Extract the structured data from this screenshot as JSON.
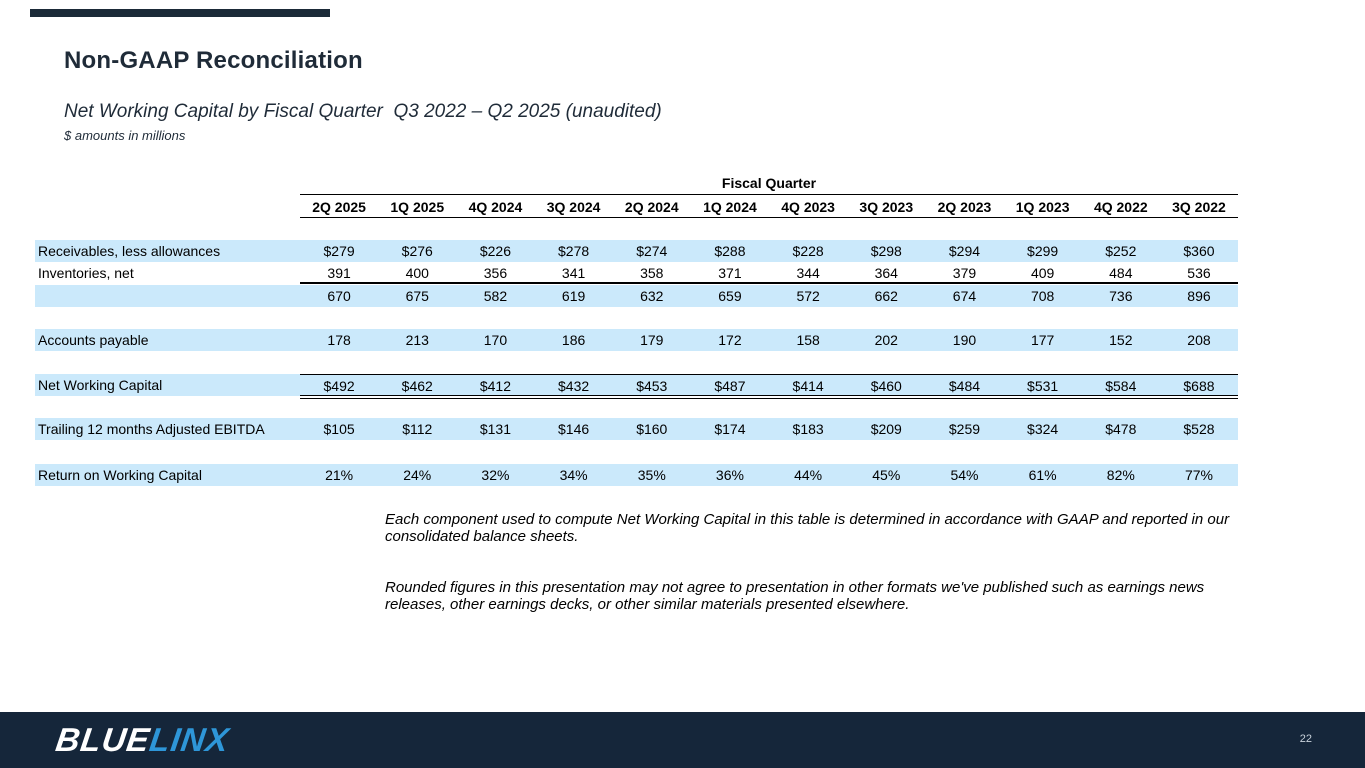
{
  "slide": {
    "title": "Non-GAAP Reconciliation",
    "subtitle": "Net Working Capital by Fiscal Quarter  Q3 2022 – Q2 2025 (unaudited)",
    "units_note": "$ amounts in millions",
    "page_number": "22"
  },
  "logo": {
    "part1": "BLUE",
    "part2": "LINX"
  },
  "colors": {
    "accent_row": "#CBE9FB",
    "footer_bg": "#15263A",
    "logo_blue": "#2E96D8",
    "title_text": "#1F2B38"
  },
  "table": {
    "group_header": "Fiscal Quarter",
    "columns": [
      "2Q 2025",
      "1Q 2025",
      "4Q 2024",
      "3Q 2024",
      "2Q 2024",
      "1Q 2024",
      "4Q 2023",
      "3Q 2023",
      "2Q 2023",
      "1Q 2023",
      "4Q 2022",
      "3Q 2022"
    ],
    "rows": [
      {
        "id": "receivables",
        "label": "Receivables, less allowances",
        "values": [
          "$279",
          "$276",
          "$226",
          "$278",
          "$274",
          "$288",
          "$228",
          "$298",
          "$294",
          "$299",
          "$252",
          "$360"
        ],
        "highlight": true
      },
      {
        "id": "inventories",
        "label": "Inventories, net",
        "values": [
          "391",
          "400",
          "356",
          "341",
          "358",
          "371",
          "344",
          "364",
          "379",
          "409",
          "484",
          "536"
        ],
        "highlight": false,
        "rule_below": true
      },
      {
        "id": "current-assets-subtotal",
        "label": "",
        "values": [
          "670",
          "675",
          "582",
          "619",
          "632",
          "659",
          "572",
          "662",
          "674",
          "708",
          "736",
          "896"
        ],
        "highlight": true
      },
      {
        "id": "accounts-payable",
        "label": "Accounts payable",
        "values": [
          "178",
          "213",
          "170",
          "186",
          "179",
          "172",
          "158",
          "202",
          "190",
          "177",
          "152",
          "208"
        ],
        "highlight": true
      },
      {
        "id": "net-working-capital",
        "label": "Net Working Capital",
        "values": [
          "$492",
          "$462",
          "$412",
          "$432",
          "$453",
          "$487",
          "$414",
          "$460",
          "$484",
          "$531",
          "$584",
          "$688"
        ],
        "highlight": true,
        "rule_above": true,
        "double_rule_below": true
      },
      {
        "id": "trailing-ebitda",
        "label": "Trailing 12 months Adjusted EBITDA",
        "values": [
          "$105",
          "$112",
          "$131",
          "$146",
          "$160",
          "$174",
          "$183",
          "$209",
          "$259",
          "$324",
          "$478",
          "$528"
        ],
        "highlight": true
      },
      {
        "id": "return-on-working-capital",
        "label": "Return on Working Capital",
        "values": [
          "21%",
          "24%",
          "32%",
          "34%",
          "35%",
          "36%",
          "44%",
          "45%",
          "54%",
          "61%",
          "82%",
          "77%"
        ],
        "highlight": true
      }
    ]
  },
  "footnotes": [
    "Each component used to compute Net Working Capital in this table is determined in accordance with GAAP and reported in our consolidated balance sheets.",
    "Rounded figures in this presentation may not agree to presentation in other formats we've published such as earnings news releases, other earnings decks, or other similar materials presented elsewhere."
  ]
}
